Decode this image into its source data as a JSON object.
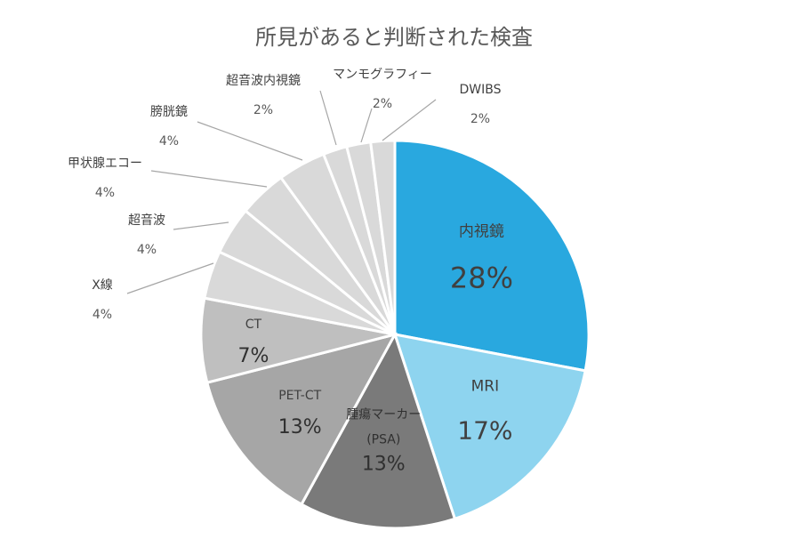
{
  "chart_data": {
    "type": "pie",
    "title": "所見があると判断された検査",
    "slices": [
      {
        "label": "内視鏡",
        "value": 28,
        "pct": "28%",
        "color": "#29A8DF"
      },
      {
        "label": "MRI",
        "value": 17,
        "pct": "17%",
        "color": "#8ED4EF"
      },
      {
        "label": "腫瘍マーカー (PSA)",
        "label_lines": [
          "腫瘍マーカー",
          "(PSA)"
        ],
        "value": 13,
        "pct": "13%",
        "color": "#7A7A7A"
      },
      {
        "label": "PET-CT",
        "value": 13,
        "pct": "13%",
        "color": "#A6A6A6"
      },
      {
        "label": "CT",
        "value": 7,
        "pct": "7%",
        "color": "#BFBFBF"
      },
      {
        "label": "X線",
        "value": 4,
        "pct": "4%",
        "color": "#D9D9D9"
      },
      {
        "label": "超音波",
        "value": 4,
        "pct": "4%",
        "color": "#D9D9D9"
      },
      {
        "label": "甲状腺エコー",
        "value": 4,
        "pct": "4%",
        "color": "#D9D9D9"
      },
      {
        "label": "膀胱鏡",
        "value": 4,
        "pct": "4%",
        "color": "#D9D9D9"
      },
      {
        "label": "超音波内視鏡",
        "value": 2,
        "pct": "2%",
        "color": "#D9D9D9"
      },
      {
        "label": "マンモグラフィー",
        "value": 2,
        "pct": "2%",
        "color": "#D9D9D9"
      },
      {
        "label": "DWIBS",
        "value": 2,
        "pct": "2%",
        "color": "#D9D9D9"
      }
    ],
    "start_angle": "12 o'clock",
    "direction": "clockwise",
    "slice_border_color": "#ffffff",
    "leader_line_color": "#A6A6A6"
  }
}
